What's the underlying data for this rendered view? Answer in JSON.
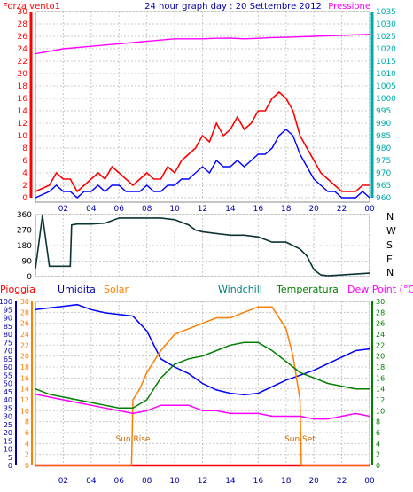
{
  "chart_data": [
    {
      "type": "line",
      "title": "24 hour graph day : 20 Settembre 2012",
      "left_label": "Forza vento1",
      "right_label": "Pressione",
      "x_ticks": [
        "02",
        "04",
        "06",
        "08",
        "10",
        "12",
        "14",
        "16",
        "18",
        "20",
        "22",
        "00"
      ],
      "y_left": {
        "range": [
          0,
          30
        ],
        "ticks": [
          0,
          2,
          4,
          6,
          8,
          10,
          12,
          14,
          16,
          18,
          20,
          22,
          24,
          26,
          28,
          30
        ]
      },
      "y_right": {
        "range": [
          960,
          1035
        ],
        "ticks": [
          960,
          965,
          970,
          975,
          980,
          985,
          990,
          995,
          1000,
          1005,
          1010,
          1015,
          1020,
          1025,
          1030,
          1035
        ]
      },
      "series": [
        {
          "key": "gust",
          "color": "#ff0000",
          "axis": "left",
          "x": [
            0,
            1,
            1.5,
            2,
            2.5,
            3,
            3.5,
            4,
            4.5,
            5,
            5.5,
            6,
            6.5,
            7,
            7.5,
            8,
            8.5,
            9,
            9.5,
            10,
            10.5,
            11,
            11.5,
            12,
            12.5,
            13,
            13.5,
            14,
            14.5,
            15,
            15.5,
            16,
            16.5,
            17,
            17.5,
            18,
            18.5,
            19,
            19.5,
            20,
            20.5,
            21,
            21.5,
            22,
            22.5,
            23,
            23.5,
            24
          ],
          "values": [
            1,
            2,
            4,
            3,
            3,
            1,
            2,
            3,
            4,
            3,
            5,
            4,
            3,
            2,
            3,
            4,
            3,
            3,
            5,
            4,
            6,
            7,
            8,
            10,
            9,
            12,
            10,
            11,
            13,
            11,
            12,
            14,
            14,
            16,
            17,
            16,
            14,
            10,
            8,
            6,
            4,
            3,
            2,
            1,
            1,
            1,
            2,
            2
          ]
        },
        {
          "key": "wind",
          "color": "#0000ff",
          "axis": "left",
          "x": [
            0,
            1,
            1.5,
            2,
            2.5,
            3,
            3.5,
            4,
            4.5,
            5,
            5.5,
            6,
            6.5,
            7,
            7.5,
            8,
            8.5,
            9,
            9.5,
            10,
            10.5,
            11,
            11.5,
            12,
            12.5,
            13,
            13.5,
            14,
            14.5,
            15,
            15.5,
            16,
            16.5,
            17,
            17.5,
            18,
            18.5,
            19,
            19.5,
            20,
            20.5,
            21,
            21.5,
            22,
            22.5,
            23,
            23.5,
            24
          ],
          "values": [
            0,
            1,
            2,
            1,
            1,
            0,
            1,
            1,
            2,
            1,
            2,
            2,
            1,
            1,
            1,
            2,
            1,
            1,
            2,
            2,
            3,
            3,
            4,
            5,
            4,
            6,
            5,
            5,
            6,
            5,
            6,
            7,
            7,
            8,
            10,
            11,
            10,
            7,
            5,
            3,
            2,
            1,
            1,
            0,
            0,
            0,
            1,
            0
          ]
        },
        {
          "key": "pressure",
          "color": "#ff00ff",
          "axis": "right",
          "x": [
            0,
            1,
            2,
            3,
            4,
            5,
            6,
            7,
            8,
            9,
            10,
            11,
            12,
            13,
            14,
            15,
            16,
            17,
            18,
            19,
            20,
            21,
            22,
            23,
            24
          ],
          "values": [
            1018,
            1019,
            1020,
            1020.5,
            1021,
            1021.5,
            1022,
            1022.5,
            1023,
            1023.5,
            1024,
            1024,
            1024,
            1024.2,
            1024.3,
            1024,
            1024.2,
            1024.5,
            1024.6,
            1024.8,
            1025,
            1025.2,
            1025.4,
            1025.6,
            1025.8
          ]
        }
      ]
    },
    {
      "type": "line",
      "title": "",
      "y_left": {
        "range": [
          0,
          360
        ],
        "ticks": [
          0,
          90,
          180,
          270,
          360
        ]
      },
      "compass": [
        "N",
        "W",
        "S",
        "E",
        "N"
      ],
      "series": [
        {
          "key": "direction",
          "color": "#0d3335",
          "x": [
            0,
            0.5,
            1,
            1.1,
            2.5,
            2.6,
            3,
            4,
            5,
            6,
            7,
            8,
            9,
            10,
            11,
            11.5,
            12,
            13,
            14,
            15,
            16,
            17,
            18,
            19,
            19.5,
            20,
            20.5,
            21,
            22,
            23,
            24
          ],
          "values": [
            45,
            355,
            60,
            60,
            60,
            300,
            305,
            305,
            310,
            340,
            340,
            340,
            340,
            330,
            300,
            270,
            260,
            250,
            240,
            240,
            230,
            200,
            200,
            160,
            120,
            40,
            10,
            5,
            10,
            15,
            20
          ]
        }
      ]
    },
    {
      "type": "line",
      "title": "",
      "legend": [
        "Pioggia",
        "Umidita",
        "Solar",
        "Windchill",
        "Temperatura",
        "Dew Point (°C)"
      ],
      "y_left": {
        "range": [
          0,
          100
        ],
        "ticks": [
          0,
          5,
          10,
          15,
          20,
          25,
          30,
          35,
          40,
          45,
          50,
          55,
          60,
          65,
          70,
          75,
          80,
          85,
          90,
          95,
          100
        ]
      },
      "y_mid": {
        "range": [
          0,
          30
        ],
        "ticks": [
          0,
          2,
          4,
          6,
          8,
          10,
          12,
          14,
          16,
          18,
          20,
          22,
          24,
          26,
          28,
          30
        ]
      },
      "y_right": {
        "range": [
          0,
          30
        ],
        "ticks": [
          0,
          2,
          4,
          6,
          8,
          10,
          12,
          14,
          16,
          18,
          20,
          22,
          24,
          26,
          28,
          30
        ]
      },
      "annotations": [
        {
          "text": "Sun Rise",
          "x": 7.0
        },
        {
          "text": "Sun Set",
          "x": 19.0
        }
      ],
      "series": [
        {
          "key": "rain",
          "color": "#ff0000",
          "axis": "left",
          "x": [
            0,
            24
          ],
          "values": [
            0,
            0
          ]
        },
        {
          "key": "humidity",
          "color": "#0000ff",
          "axis": "left",
          "x": [
            0,
            1,
            2,
            3,
            4,
            5,
            6,
            7,
            8,
            9,
            10,
            11,
            12,
            13,
            14,
            15,
            16,
            17,
            18,
            19,
            20,
            21,
            22,
            23,
            24
          ],
          "values": [
            95,
            96,
            97,
            98,
            95,
            93,
            92,
            91,
            82,
            65,
            60,
            56,
            50,
            46,
            44,
            43,
            44,
            48,
            52,
            55,
            58,
            62,
            66,
            70,
            71
          ]
        },
        {
          "key": "solar",
          "color": "#ff7f00",
          "axis": "mid",
          "x": [
            0,
            6.9,
            7.0,
            7.5,
            8,
            9,
            10,
            11,
            12,
            13,
            14,
            15,
            16,
            17,
            17.5,
            18,
            18.5,
            19,
            19.1,
            24
          ],
          "values": [
            0,
            0,
            12,
            14,
            17,
            21,
            24,
            25,
            26,
            27,
            27,
            28,
            29,
            29,
            27,
            25,
            20,
            12,
            0,
            0
          ]
        },
        {
          "key": "temperature",
          "color": "#007f00",
          "axis": "right",
          "x": [
            0,
            1,
            2,
            3,
            4,
            5,
            6,
            7,
            8,
            9,
            10,
            11,
            12,
            13,
            14,
            15,
            16,
            17,
            18,
            19,
            20,
            21,
            22,
            23,
            24
          ],
          "values": [
            14,
            13,
            12.5,
            12,
            11.5,
            11,
            10.5,
            10.5,
            12,
            16,
            18.5,
            19.5,
            20,
            21,
            22,
            22.5,
            22.5,
            21,
            19,
            17,
            16,
            15,
            14.5,
            14,
            14
          ]
        },
        {
          "key": "dewpoint",
          "color": "#ff00ff",
          "axis": "right",
          "x": [
            0,
            1,
            2,
            3,
            4,
            5,
            6,
            7,
            8,
            9,
            10,
            11,
            12,
            13,
            14,
            15,
            16,
            17,
            18,
            19,
            20,
            21,
            22,
            23,
            24
          ],
          "values": [
            13,
            12.5,
            12,
            11.5,
            11,
            10.5,
            10,
            9.5,
            10,
            11,
            11,
            11,
            10,
            10,
            9.5,
            9.5,
            9.5,
            9,
            9,
            9,
            8.5,
            8.5,
            9,
            9.5,
            9
          ]
        }
      ]
    }
  ]
}
